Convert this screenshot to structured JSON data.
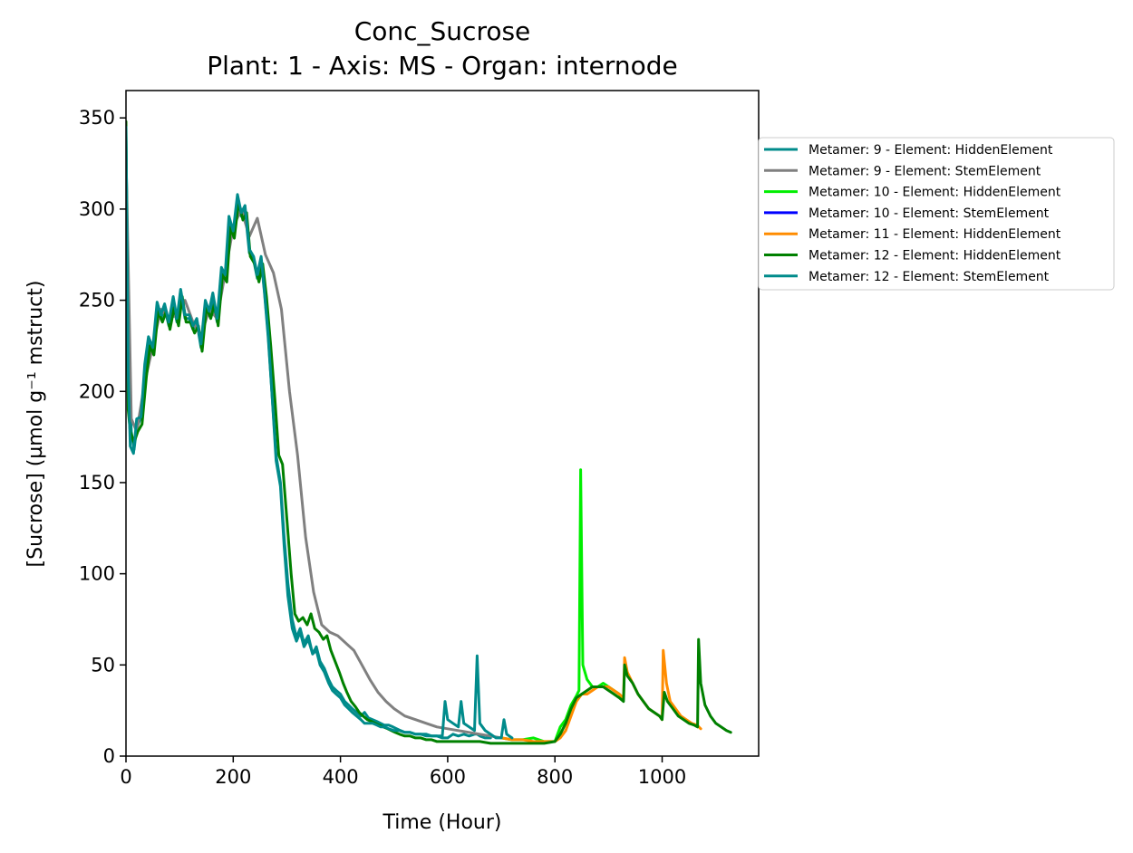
{
  "chart_data": {
    "type": "line",
    "title": "Conc_Sucrose",
    "subtitle": "Plant: 1 - Axis: MS - Organ: internode",
    "xlabel": "Time (Hour)",
    "ylabel": "[Sucrose] (µmol g⁻¹ mstruct)",
    "xlim": [
      0,
      1180
    ],
    "ylim": [
      0,
      365
    ],
    "xticks": [
      0,
      200,
      400,
      600,
      800,
      1000
    ],
    "yticks": [
      0,
      50,
      100,
      150,
      200,
      250,
      300,
      350
    ],
    "grid": false,
    "legend_position": "outside-right-top",
    "series": [
      {
        "name": "Metamer: 9 - Element: HiddenElement",
        "color": "#008b8b",
        "x": [
          0,
          5,
          10,
          15,
          20,
          28,
          35,
          42,
          50,
          58,
          65,
          72,
          80,
          88,
          95,
          102,
          110,
          118,
          125,
          132,
          140,
          148,
          155,
          162,
          170,
          178,
          185,
          192,
          200,
          208,
          215,
          222,
          230,
          238,
          245,
          252,
          258,
          265,
          272,
          280,
          288,
          295,
          302,
          310,
          318,
          325,
          332,
          340,
          348,
          355,
          362,
          370,
          378,
          385,
          392,
          400,
          408,
          415,
          422,
          430,
          438,
          445,
          452,
          460,
          468,
          475,
          482,
          490,
          498,
          505,
          512,
          520,
          530,
          540,
          550,
          560,
          570,
          580,
          590,
          600,
          610,
          620,
          630,
          640,
          650,
          655,
          660,
          670,
          680
        ],
        "y": [
          340,
          210,
          178,
          168,
          180,
          186,
          210,
          228,
          222,
          246,
          240,
          246,
          236,
          248,
          238,
          255,
          240,
          240,
          234,
          238,
          224,
          248,
          242,
          250,
          238,
          266,
          262,
          292,
          286,
          306,
          296,
          300,
          276,
          272,
          262,
          272,
          255,
          230,
          200,
          165,
          150,
          120,
          95,
          75,
          65,
          70,
          62,
          66,
          56,
          60,
          52,
          48,
          42,
          38,
          36,
          34,
          30,
          28,
          26,
          24,
          22,
          24,
          21,
          20,
          19,
          18,
          17,
          17,
          16,
          15,
          14,
          13,
          13,
          12,
          12,
          11,
          11,
          11,
          10,
          10,
          12,
          11,
          12,
          11,
          12,
          12,
          11,
          10,
          10
        ]
      },
      {
        "name": "Metamer: 9 - Element: StemElement",
        "color": "#808080",
        "x": [
          0,
          10,
          20,
          35,
          50,
          65,
          80,
          95,
          110,
          125,
          140,
          155,
          170,
          185,
          200,
          215,
          230,
          245,
          260,
          275,
          290,
          305,
          320,
          335,
          350,
          365,
          380,
          395,
          410,
          425,
          440,
          455,
          470,
          485,
          500,
          520,
          540,
          560,
          580,
          600,
          620,
          640,
          660,
          680,
          700
        ],
        "y": [
          330,
          185,
          178,
          205,
          225,
          245,
          240,
          242,
          250,
          238,
          230,
          245,
          240,
          265,
          290,
          300,
          285,
          295,
          275,
          265,
          245,
          200,
          165,
          120,
          90,
          72,
          68,
          66,
          62,
          58,
          50,
          42,
          35,
          30,
          26,
          22,
          20,
          18,
          16,
          15,
          14,
          13,
          12,
          11,
          10
        ]
      },
      {
        "name": "Metamer: 10 - Element: HiddenElement",
        "color": "#00ee00",
        "x": [
          700,
          720,
          740,
          760,
          780,
          800,
          810,
          820,
          830,
          840,
          845,
          848,
          852,
          860,
          870,
          880,
          890,
          900,
          910,
          920,
          925
        ],
        "y": [
          10,
          9,
          9,
          10,
          8,
          8,
          16,
          20,
          28,
          33,
          36,
          157,
          50,
          42,
          38,
          38,
          40,
          38,
          36,
          34,
          32
        ]
      },
      {
        "name": "Metamer: 10 - Element: StemElement",
        "color": "#0000ff",
        "x": [],
        "y": []
      },
      {
        "name": "Metamer: 11 - Element: HiddenElement",
        "color": "#ff8c00",
        "x": [
          700,
          720,
          740,
          760,
          780,
          800,
          810,
          820,
          830,
          840,
          850,
          860,
          870,
          880,
          890,
          900,
          910,
          920,
          928,
          930,
          935,
          945,
          955,
          965,
          975,
          985,
          995,
          1000,
          1002,
          1008,
          1015,
          1025,
          1035,
          1045,
          1055,
          1065,
          1072
        ],
        "y": [
          10,
          9,
          9,
          8,
          8,
          8,
          10,
          14,
          22,
          30,
          34,
          34,
          36,
          38,
          38,
          38,
          36,
          34,
          32,
          54,
          46,
          40,
          34,
          30,
          26,
          24,
          22,
          20,
          58,
          40,
          30,
          26,
          22,
          20,
          18,
          17,
          15
        ]
      },
      {
        "name": "Metamer: 12 - Element: HiddenElement",
        "color": "#008000",
        "x": [
          0,
          4,
          8,
          15,
          22,
          30,
          38,
          45,
          52,
          60,
          68,
          75,
          82,
          90,
          98,
          105,
          112,
          120,
          128,
          135,
          142,
          150,
          158,
          165,
          172,
          180,
          188,
          195,
          202,
          210,
          218,
          225,
          232,
          240,
          248,
          255,
          262,
          270,
          278,
          285,
          292,
          300,
          308,
          315,
          322,
          330,
          338,
          345,
          352,
          360,
          368,
          375,
          382,
          390,
          398,
          405,
          412,
          420,
          428,
          435,
          442,
          450,
          458,
          465,
          472,
          480,
          488,
          495,
          502,
          510,
          520,
          530,
          540,
          550,
          560,
          570,
          580,
          590,
          600,
          620,
          640,
          660,
          680,
          700,
          720,
          740,
          760,
          780,
          800,
          810,
          820,
          830,
          840,
          850,
          860,
          870,
          880,
          890,
          900,
          910,
          920,
          928,
          930,
          935,
          945,
          955,
          965,
          975,
          985,
          995,
          1000,
          1004,
          1010,
          1020,
          1030,
          1040,
          1050,
          1060,
          1066,
          1068,
          1072,
          1080,
          1090,
          1100,
          1110,
          1120,
          1128
        ],
        "y": [
          348,
          190,
          178,
          172,
          178,
          182,
          208,
          225,
          220,
          244,
          238,
          244,
          234,
          246,
          236,
          252,
          238,
          238,
          232,
          236,
          222,
          246,
          240,
          248,
          236,
          264,
          260,
          290,
          284,
          304,
          294,
          298,
          274,
          270,
          260,
          270,
          252,
          225,
          195,
          165,
          160,
          130,
          100,
          78,
          74,
          76,
          72,
          78,
          70,
          68,
          64,
          66,
          58,
          52,
          46,
          40,
          35,
          30,
          27,
          24,
          22,
          20,
          19,
          18,
          17,
          16,
          15,
          14,
          13,
          12,
          11,
          11,
          10,
          10,
          9,
          9,
          8,
          8,
          8,
          8,
          8,
          8,
          7,
          7,
          7,
          7,
          7,
          7,
          8,
          12,
          18,
          26,
          32,
          34,
          36,
          38,
          38,
          38,
          36,
          34,
          32,
          30,
          50,
          44,
          40,
          34,
          30,
          26,
          24,
          22,
          20,
          35,
          30,
          26,
          22,
          20,
          18,
          17,
          16,
          64,
          40,
          28,
          22,
          18,
          16,
          14,
          13
        ]
      },
      {
        "name": "Metamer: 12 - Element: StemElement",
        "color": "#008b8b",
        "x": [
          0,
          4,
          8,
          14,
          20,
          28,
          35,
          42,
          50,
          58,
          65,
          72,
          80,
          88,
          95,
          102,
          110,
          118,
          125,
          132,
          140,
          148,
          155,
          162,
          170,
          178,
          185,
          192,
          200,
          208,
          215,
          222,
          230,
          238,
          245,
          252,
          258,
          265,
          272,
          280,
          288,
          295,
          302,
          310,
          318,
          325,
          332,
          340,
          348,
          355,
          362,
          370,
          378,
          385,
          392,
          400,
          408,
          415,
          422,
          430,
          438,
          445,
          452,
          460,
          468,
          475,
          482,
          490,
          500,
          510,
          520,
          530,
          540,
          550,
          560,
          570,
          580,
          590,
          595,
          600,
          610,
          620,
          625,
          630,
          640,
          650,
          655,
          660,
          670,
          680,
          690,
          700,
          705,
          710,
          720
        ],
        "y": [
          345,
          210,
          170,
          166,
          185,
          186,
          215,
          230,
          224,
          249,
          242,
          248,
          238,
          252,
          240,
          256,
          242,
          242,
          236,
          240,
          226,
          250,
          244,
          254,
          240,
          268,
          264,
          296,
          288,
          308,
          298,
          302,
          278,
          274,
          264,
          274,
          256,
          232,
          200,
          162,
          148,
          115,
          88,
          70,
          63,
          68,
          60,
          64,
          56,
          58,
          50,
          46,
          40,
          36,
          34,
          32,
          28,
          26,
          24,
          22,
          20,
          18,
          18,
          18,
          17,
          16,
          16,
          15,
          14,
          14,
          13,
          13,
          12,
          12,
          12,
          11,
          11,
          11,
          30,
          20,
          18,
          16,
          30,
          18,
          16,
          14,
          55,
          18,
          14,
          12,
          10,
          10,
          20,
          12,
          10
        ]
      }
    ]
  }
}
